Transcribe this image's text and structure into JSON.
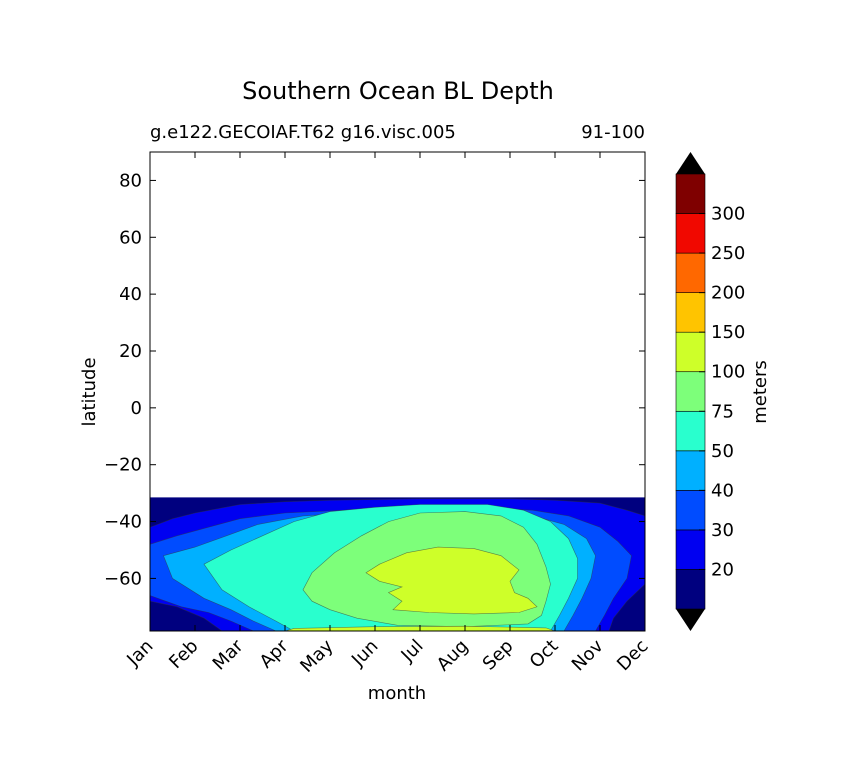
{
  "chart_data": {
    "type": "heatmap",
    "title": "Southern Ocean BL Depth",
    "subtitle_left": "g.e122.GECOIAF.T62 g16.visc.005",
    "subtitle_right": "91-100",
    "xlabel": "month",
    "ylabel": "latitude",
    "x_ticks": [
      "Jan",
      "Feb",
      "Mar",
      "Apr",
      "May",
      "Jun",
      "Jul",
      "Aug",
      "Sep",
      "Oct",
      "Nov",
      "Dec"
    ],
    "y_ticks": [
      80,
      60,
      40,
      20,
      0,
      -20,
      -40,
      -60
    ],
    "ylim": [
      -78.5,
      90
    ],
    "data_lat_range": [
      -78.5,
      -31.5
    ],
    "colorbar": {
      "label": "meters",
      "tick_labels": [
        "20",
        "30",
        "40",
        "50",
        "75",
        "100",
        "150",
        "200",
        "250",
        "300"
      ],
      "levels": [
        20,
        30,
        40,
        50,
        75,
        100,
        150,
        200,
        250,
        300
      ],
      "colors": [
        "#00007f",
        "#0000f1",
        "#004cff",
        "#00b0ff",
        "#29ffce",
        "#7dff7a",
        "#ceff29",
        "#ffc400",
        "#ff6800",
        "#f10800",
        "#7f0000"
      ],
      "extend": "both"
    },
    "contour_regions": [
      {
        "level": "<20",
        "color": "#00007f",
        "lat_range": [
          -78.5,
          -31.5
        ],
        "months": "all"
      },
      {
        "level": "20-30",
        "color": "#0000f1",
        "lat_range": [
          -78.5,
          -31.5
        ],
        "months": "all, widest in Feb-Mar and Nov-Dec"
      },
      {
        "level": "30-40",
        "color": "#004cff",
        "lat_range": [
          -76,
          -41
        ],
        "months": "Jan-Dec"
      },
      {
        "level": "40-50",
        "color": "#00b0ff",
        "lat_range": [
          -77,
          -38
        ],
        "months": "Feb-Nov"
      },
      {
        "level": "50-75",
        "color": "#29ffce",
        "lat_range": [
          -78,
          -34
        ],
        "months": "Feb-Nov"
      },
      {
        "level": "75-100",
        "color": "#7dff7a",
        "lat_range": [
          -77,
          -35
        ],
        "months": "May-Oct"
      },
      {
        "level": "100-150",
        "color": "#ceff29",
        "lat_range": [
          -70,
          -48
        ],
        "months": "Jun-Oct"
      }
    ]
  }
}
